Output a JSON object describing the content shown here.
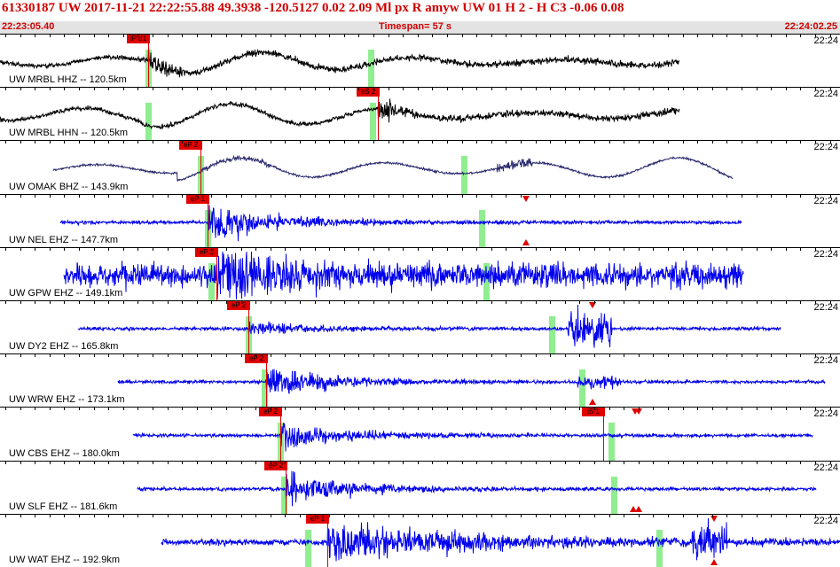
{
  "header": {
    "text": "61330187 UW 2017-11-21 22:22:55.88    49.3938 -120.5127    0.02   2.09 Ml   px   R  amyw      UW 01   H    2   -   H C3     -0.06   0.08",
    "start_time": "22:23:05.40",
    "timespan": "Timespan=  57 s",
    "end_time": "22:24:02.25"
  },
  "colors": {
    "header_red": "#d00000",
    "pick_red": "#e00000",
    "green_marker": "#90ee90",
    "trace_black": "#000000",
    "trace_navy": "#2a2a6e",
    "trace_blue": "#0000ee"
  },
  "traces": [
    {
      "label": "UW MRBL HHZ -- 120.5km",
      "time_label": "22:24",
      "color": "black",
      "style": "surface",
      "picks": [
        {
          "label": "iP d1",
          "x": 167
        }
      ],
      "greens": [
        167,
        418
      ],
      "triangles": []
    },
    {
      "label": "UW MRBL HHN -- 120.5km",
      "time_label": "22:24",
      "color": "black",
      "style": "surface2",
      "picks": [
        {
          "label": "eS 2",
          "x": 426
        }
      ],
      "greens": [
        167,
        420
      ],
      "triangles": []
    },
    {
      "label": "UW OMAK BHZ -- 143.9km",
      "time_label": "22:24",
      "color": "navy",
      "style": "omak",
      "picks": [
        {
          "label": "eP 2",
          "x": 226
        }
      ],
      "greens": [
        226,
        523
      ],
      "triangles": []
    },
    {
      "label": "UW NEL EHZ -- 147.7km",
      "time_label": "22:24",
      "color": "blue",
      "style": "burst",
      "picks": [
        {
          "label": "eP 1",
          "x": 234
        }
      ],
      "greens": [
        234,
        543
      ],
      "triangles": [
        {
          "x": 593,
          "dir": "down"
        },
        {
          "x": 593,
          "dir": "up"
        }
      ]
    },
    {
      "label": "UW GPW EHZ -- 149.1km",
      "time_label": "22:24",
      "color": "blue",
      "style": "noisy",
      "picks": [
        {
          "label": "eP 2",
          "x": 244
        }
      ],
      "greens": [
        238,
        548
      ],
      "triangles": []
    },
    {
      "label": "UW DY2 EHZ -- 165.8km",
      "time_label": "22:24",
      "color": "blue",
      "style": "dy2",
      "picks": [
        {
          "label": "eP 2",
          "x": 280
        }
      ],
      "greens": [
        280,
        622
      ],
      "triangles": [
        {
          "x": 668,
          "dir": "down"
        },
        {
          "x": 668,
          "dir": "down"
        }
      ]
    },
    {
      "label": "UW WRW EHZ -- 173.1km",
      "time_label": "22:24",
      "color": "blue",
      "style": "event",
      "picks": [
        {
          "label": "eP 2",
          "x": 300
        }
      ],
      "greens": [
        298,
        656
      ],
      "triangles": [
        {
          "x": 668,
          "dir": "up"
        }
      ]
    },
    {
      "label": "UW CBS EHZ -- 180.0km",
      "time_label": "22:24",
      "color": "blue",
      "style": "event",
      "picks": [
        {
          "label": "eP 2",
          "x": 316
        }
      ],
      "greens": [
        316,
        689
      ],
      "triangles": [
        {
          "x": 720,
          "dir": "down"
        },
        {
          "x": 716,
          "dir": "down"
        }
      ],
      "s_pick": {
        "label": "iS 1",
        "x": 680
      }
    },
    {
      "label": "UW SLF EHZ -- 181.6km",
      "time_label": "22:24",
      "color": "blue",
      "style": "event",
      "picks": [
        {
          "label": "eP 2",
          "x": 322
        }
      ],
      "greens": [
        320,
        692
      ],
      "triangles": [
        {
          "x": 720,
          "dir": "up"
        },
        {
          "x": 714,
          "dir": "up"
        }
      ]
    },
    {
      "label": "UW WAT EHZ -- 192.9km",
      "time_label": "22:24",
      "color": "blue",
      "style": "wat",
      "picks": [
        {
          "label": "eP 1",
          "x": 369
        }
      ],
      "greens": [
        347,
        743
      ],
      "triangles": [
        {
          "x": 805,
          "dir": "down"
        },
        {
          "x": 805,
          "dir": "up"
        }
      ]
    }
  ]
}
